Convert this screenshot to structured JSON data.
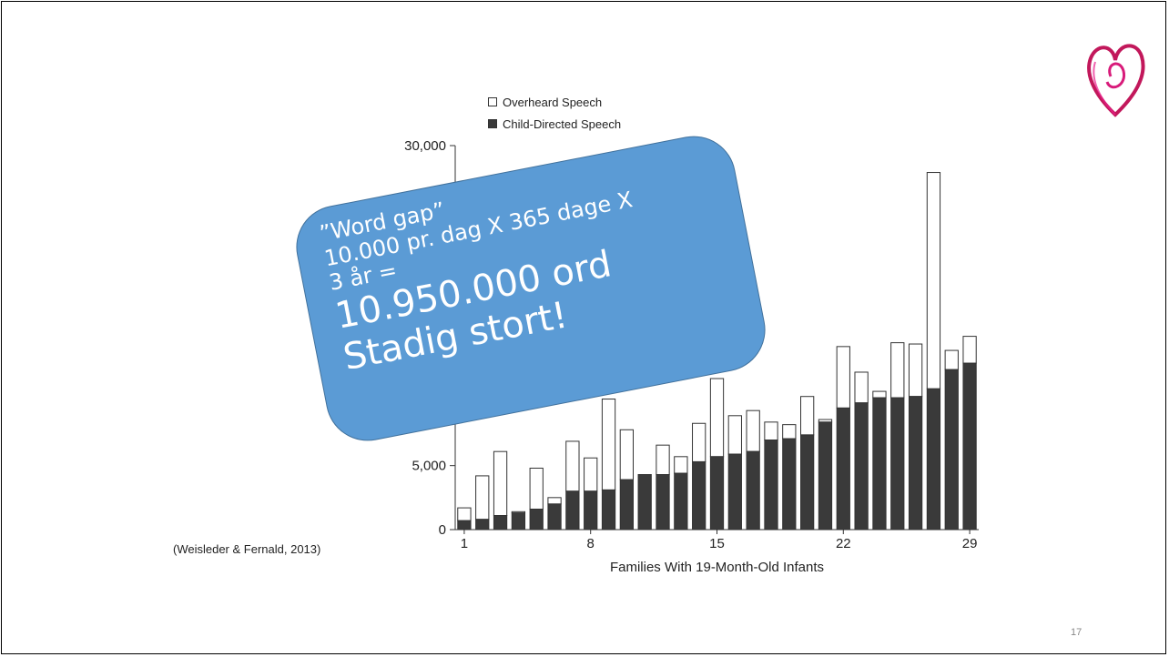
{
  "slide": {
    "citation": "(Weisleder & Fernald, 2013)",
    "page_number": "17"
  },
  "callout": {
    "line1": "”Word gap”",
    "line2": "10.000 pr. dag X 365 dage X",
    "line3": "3 år =",
    "line4": "10.950.000 ord",
    "line5": "Stadig stort!",
    "color": "#5b9bd5"
  },
  "chart_data": {
    "type": "bar",
    "stacked": true,
    "categories": [
      1,
      2,
      3,
      4,
      5,
      6,
      7,
      8,
      9,
      10,
      11,
      12,
      13,
      14,
      15,
      16,
      17,
      18,
      19,
      20,
      21,
      22,
      23,
      24,
      25,
      26,
      27,
      28,
      29
    ],
    "series": [
      {
        "name": "Child-Directed Speech",
        "color": "#3a3a3a",
        "values": [
          700,
          800,
          1100,
          1300,
          1600,
          2000,
          3000,
          3000,
          3100,
          3900,
          4300,
          4300,
          4400,
          5300,
          5700,
          5900,
          6100,
          7000,
          7100,
          7400,
          8400,
          9500,
          9900,
          10300,
          10300,
          10400,
          11000,
          12500,
          13000
        ]
      },
      {
        "name": "Overheard Speech",
        "color": "#ffffff",
        "values": [
          1000,
          3400,
          5000,
          100,
          3200,
          500,
          3900,
          2600,
          7100,
          3900,
          0,
          2300,
          1300,
          3000,
          6100,
          3000,
          3200,
          1400,
          1100,
          3000,
          200,
          4800,
          2400,
          500,
          4300,
          4100,
          16900,
          1500,
          2100
        ]
      }
    ],
    "legend_labels": [
      "Overheard Speech",
      "Child-Directed Speech"
    ],
    "legend_position": "top",
    "y_ticks": [
      0,
      5000,
      30000
    ],
    "y_tick_labels": [
      "0",
      "5,000",
      "30,000"
    ],
    "x_tick_labels": [
      "1",
      "8",
      "15",
      "22",
      "29"
    ],
    "xlabel": "Families With 19-Month-Old Infants",
    "ylabel": "",
    "ylim": [
      0,
      30000
    ],
    "grid": false
  }
}
